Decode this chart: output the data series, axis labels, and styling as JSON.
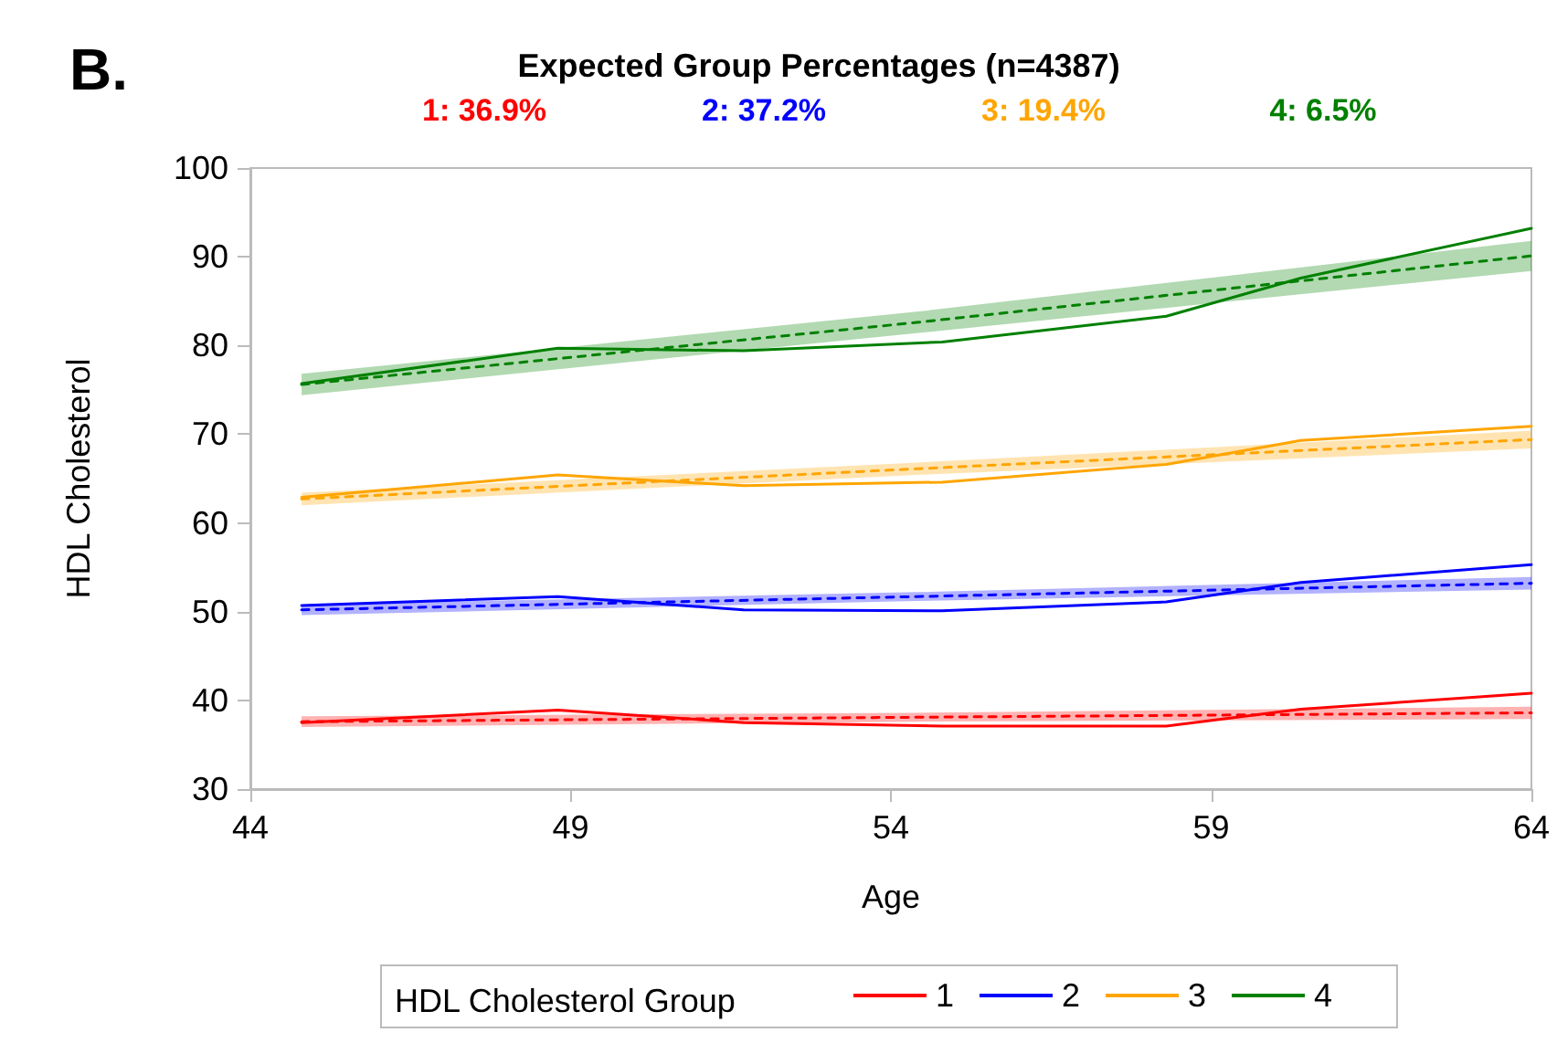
{
  "chart_data": {
    "type": "line",
    "title": "Expected Group Percentages (n=4387)",
    "xlabel": "Age",
    "ylabel": "HDL Cholesterol",
    "legend_title": "HDL Cholesterol Group",
    "annotations": [
      "B.",
      "1: 36.9%",
      "2: 37.2%",
      "3: 19.4%",
      "4: 6.5%"
    ],
    "xlim": [
      44,
      64
    ],
    "xticks": [
      44,
      49,
      54,
      59,
      64
    ],
    "ylim": [
      30,
      100
    ],
    "yticks": [
      30,
      40,
      50,
      60,
      70,
      80,
      90,
      100
    ],
    "grid": false,
    "legend": "bottom",
    "marker": "none",
    "series": [
      {
        "name": "1",
        "color": "#ff0000",
        "line_style": "solid",
        "x": [
          44.8,
          48.8,
          51.7,
          54.8,
          58.3,
          60.4,
          64
        ],
        "values": [
          37.5,
          38.9,
          37.5,
          37.1,
          37.1,
          39.0,
          40.8
        ]
      },
      {
        "name": "2",
        "color": "#0000ff",
        "line_style": "solid",
        "x": [
          44.8,
          48.8,
          51.7,
          54.8,
          58.3,
          60.4,
          64
        ],
        "values": [
          50.7,
          51.7,
          50.2,
          50.1,
          51.1,
          53.3,
          55.3
        ]
      },
      {
        "name": "3",
        "color": "#ffa500",
        "line_style": "solid",
        "x": [
          44.8,
          48.8,
          51.7,
          54.8,
          58.3,
          60.4,
          64
        ],
        "values": [
          62.9,
          65.4,
          64.2,
          64.6,
          66.6,
          69.3,
          70.9
        ]
      },
      {
        "name": "4",
        "color": "#008000",
        "line_style": "solid",
        "x": [
          44.8,
          48.8,
          51.7,
          54.8,
          58.3,
          60.4,
          64
        ],
        "values": [
          75.7,
          79.7,
          79.4,
          80.4,
          83.3,
          87.6,
          93.2
        ]
      },
      {
        "color": "#ff0000",
        "line_style": "dashed",
        "x": [
          44.8,
          54.4,
          64
        ],
        "values": [
          37.6,
          38.1,
          38.6
        ],
        "lower": [
          37.0,
          37.6,
          37.9
        ],
        "upper": [
          38.2,
          38.6,
          39.3
        ]
      },
      {
        "color": "#0000ff",
        "line_style": "dashed",
        "x": [
          44.8,
          54.4,
          64
        ],
        "values": [
          50.2,
          51.7,
          53.2
        ],
        "lower": [
          49.6,
          51.2,
          52.5
        ],
        "upper": [
          50.8,
          52.2,
          53.9
        ]
      },
      {
        "color": "#ffa500",
        "line_style": "dashed",
        "x": [
          44.8,
          54.4,
          64
        ],
        "values": [
          62.7,
          66.1,
          69.4
        ],
        "lower": [
          62.0,
          65.4,
          68.4
        ],
        "upper": [
          63.4,
          66.8,
          70.4
        ]
      },
      {
        "color": "#008000",
        "line_style": "dashed",
        "x": [
          44.8,
          54.4,
          64
        ],
        "values": [
          75.6,
          82.6,
          90.1
        ],
        "lower": [
          74.4,
          81.4,
          88.4
        ],
        "upper": [
          76.8,
          83.8,
          91.8
        ]
      }
    ]
  }
}
